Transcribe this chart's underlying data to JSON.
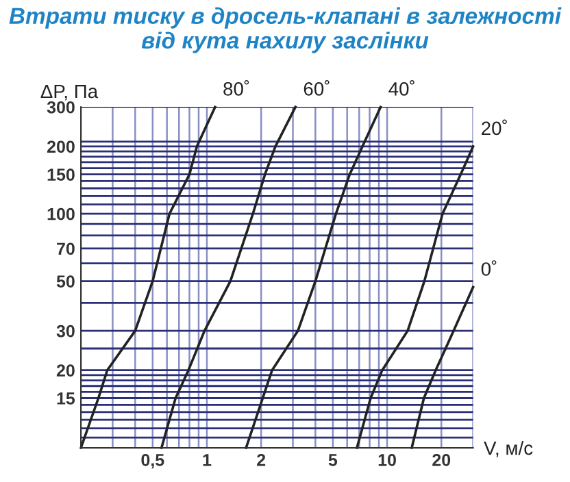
{
  "chart_data": {
    "type": "line",
    "title": "Втрати тиску в дросель-клапані в залежності від кута нахилу заслінки",
    "xlabel": "V, м/с",
    "ylabel": "ΔP, Па",
    "log": "xy",
    "grid": true,
    "legend": false,
    "marker": "none",
    "line_style": "solid",
    "xlim": [
      0.2,
      30
    ],
    "ylim": [
      9,
      300
    ],
    "xticks": [
      {
        "value": 0.3,
        "label": null
      },
      {
        "value": 0.4,
        "label": null
      },
      {
        "value": 0.5,
        "label": "0,5"
      },
      {
        "value": 0.6,
        "label": null
      },
      {
        "value": 0.7,
        "label": null
      },
      {
        "value": 0.8,
        "label": null
      },
      {
        "value": 0.9,
        "label": null
      },
      1,
      2,
      {
        "value": 3,
        "label": null
      },
      {
        "value": 4,
        "label": null
      },
      5,
      {
        "value": 6,
        "label": null
      },
      {
        "value": 7,
        "label": null
      },
      {
        "value": 8,
        "label": null
      },
      {
        "value": 9,
        "label": null
      },
      10,
      20,
      {
        "value": 30,
        "label": null
      }
    ],
    "yticks": [
      {
        "value": 10,
        "label": null
      },
      {
        "value": 11,
        "label": null
      },
      {
        "value": 12,
        "label": null
      },
      {
        "value": 13,
        "label": null
      },
      {
        "value": 14,
        "label": null
      },
      15,
      {
        "value": 16,
        "label": null
      },
      {
        "value": 17,
        "label": null
      },
      {
        "value": 18,
        "label": null
      },
      {
        "value": 19,
        "label": null
      },
      20,
      {
        "value": 25,
        "label": null
      },
      30,
      {
        "value": 40,
        "label": null
      },
      50,
      {
        "value": 60,
        "label": null
      },
      70,
      {
        "value": 80,
        "label": null
      },
      {
        "value": 90,
        "label": null
      },
      100,
      {
        "value": 110,
        "label": null
      },
      {
        "value": 120,
        "label": null
      },
      {
        "value": 130,
        "label": null
      },
      {
        "value": 140,
        "label": null
      },
      150,
      {
        "value": 160,
        "label": null
      },
      {
        "value": 170,
        "label": null
      },
      {
        "value": 180,
        "label": null
      },
      {
        "value": 190,
        "label": null
      },
      200,
      {
        "value": 210,
        "label": null
      },
      300
    ],
    "series": [
      {
        "name": "80˚",
        "color": "#222222",
        "x": [
          0.2,
          0.25,
          0.28,
          0.4,
          0.5,
          0.62,
          0.8,
          0.88,
          1.11
        ],
        "values": [
          9,
          15,
          20,
          30,
          50,
          100,
          150,
          200,
          300
        ]
      },
      {
        "name": "60˚",
        "color": "#222222",
        "x": [
          0.56,
          0.67,
          0.79,
          0.97,
          1.35,
          1.8,
          2.1,
          2.4,
          3.1
        ],
        "values": [
          9,
          15,
          20,
          30,
          50,
          100,
          150,
          200,
          300
        ]
      },
      {
        "name": "40˚",
        "color": "#222222",
        "x": [
          1.65,
          2.3,
          3.2,
          4.0,
          5.2,
          6.2,
          7.3,
          9.2
        ],
        "values": [
          9,
          20,
          30,
          50,
          100,
          150,
          200,
          300
        ]
      },
      {
        "name": "20˚",
        "color": "#222222",
        "x": [
          6.8,
          8.1,
          9.4,
          13,
          16.1,
          20.3,
          25.6,
          30
        ],
        "values": [
          9,
          15,
          20,
          30,
          50,
          100,
          150,
          200
        ]
      },
      {
        "name": "0˚",
        "color": "#222222",
        "x": [
          13.7,
          16,
          18.6,
          23.4,
          30
        ],
        "values": [
          9,
          15,
          20,
          30,
          47
        ]
      }
    ]
  }
}
